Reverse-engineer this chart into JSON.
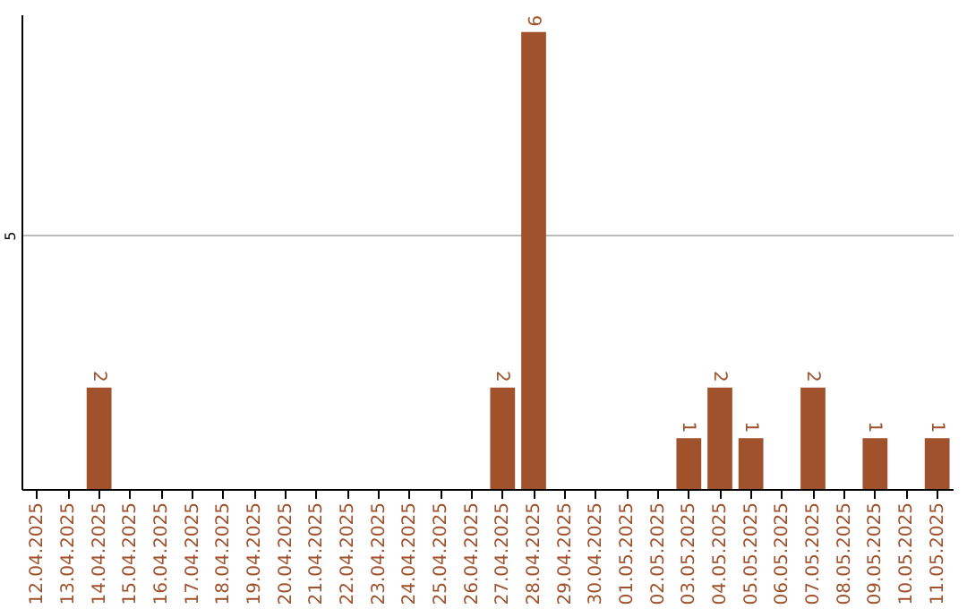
{
  "chart_data": {
    "type": "bar",
    "categories": [
      "12.04.2025",
      "13.04.2025",
      "14.04.2025",
      "15.04.2025",
      "16.04.2025",
      "17.04.2025",
      "18.04.2025",
      "19.04.2025",
      "20.04.2025",
      "21.04.2025",
      "22.04.2025",
      "23.04.2025",
      "24.04.2025",
      "25.04.2025",
      "26.04.2025",
      "27.04.2025",
      "28.04.2025",
      "29.04.2025",
      "30.04.2025",
      "01.05.2025",
      "02.05.2025",
      "03.05.2025",
      "04.05.2025",
      "05.05.2025",
      "06.05.2025",
      "07.05.2025",
      "08.05.2025",
      "09.05.2025",
      "10.05.2025",
      "11.05.2025"
    ],
    "values": [
      0,
      0,
      2,
      0,
      0,
      0,
      0,
      0,
      0,
      0,
      0,
      0,
      0,
      0,
      0,
      2,
      9,
      0,
      0,
      0,
      0,
      1,
      2,
      1,
      0,
      2,
      0,
      1,
      0,
      1
    ],
    "value_labels": [
      null,
      null,
      "2",
      null,
      null,
      null,
      null,
      null,
      null,
      null,
      null,
      null,
      null,
      null,
      null,
      "2",
      "9",
      null,
      null,
      null,
      null,
      "1",
      "2",
      "1",
      null,
      "2",
      null,
      "1",
      null,
      "1"
    ],
    "color": "#a0522d",
    "ylim": [
      0,
      9.35
    ],
    "yticks": [
      5
    ],
    "grid": "y"
  }
}
